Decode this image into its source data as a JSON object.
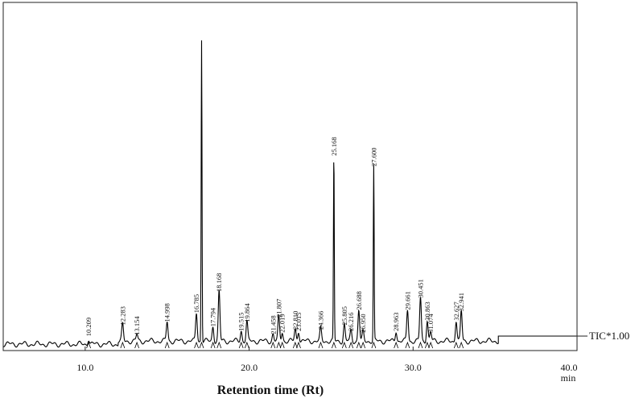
{
  "chart_data": {
    "type": "line",
    "xlabel": "Retention time (Rt)",
    "x_unit": "min",
    "xlim": [
      5.0,
      40.0
    ],
    "x_ticks": [
      "10.0",
      "20.0",
      "30.0",
      "40.0"
    ],
    "ylim": [
      0,
      100
    ],
    "grid": false,
    "trace_label": "TIC*1.00",
    "peaks": [
      {
        "rt": 10.209,
        "label": "10.209",
        "height": 1.8
      },
      {
        "rt": 12.283,
        "label": "12.283",
        "height": 5.5
      },
      {
        "rt": 13.154,
        "label": "13.154",
        "height": 2.2
      },
      {
        "rt": 14.998,
        "label": "14.998",
        "height": 6.5
      },
      {
        "rt": 16.785,
        "label": "16.785",
        "height": 9.5
      },
      {
        "rt": 17.1,
        "label": "",
        "height": 100.0
      },
      {
        "rt": 17.794,
        "label": "17.794",
        "height": 5.0
      },
      {
        "rt": 18.168,
        "label": "18.168",
        "height": 16.5
      },
      {
        "rt": 19.515,
        "label": "19.515",
        "height": 3.5
      },
      {
        "rt": 19.864,
        "label": "19.864",
        "height": 6.5
      },
      {
        "rt": 21.458,
        "label": "21.458",
        "height": 2.5
      },
      {
        "rt": 21.807,
        "label": "21.807",
        "height": 8.0
      },
      {
        "rt": 22.019,
        "label": "22.019",
        "height": 3.0
      },
      {
        "rt": 22.81,
        "label": "22.810",
        "height": 4.0
      },
      {
        "rt": 23.015,
        "label": "23.015",
        "height": 3.5
      },
      {
        "rt": 24.366,
        "label": "24.366",
        "height": 4.0
      },
      {
        "rt": 25.168,
        "label": "25.168",
        "height": 61.5
      },
      {
        "rt": 25.805,
        "label": "25.805",
        "height": 5.5
      },
      {
        "rt": 26.216,
        "label": "26.216",
        "height": 3.5
      },
      {
        "rt": 26.688,
        "label": "26.688",
        "height": 10.5
      },
      {
        "rt": 26.95,
        "label": "26.950",
        "height": 3.0
      },
      {
        "rt": 27.6,
        "label": "27.600",
        "height": 58.0
      },
      {
        "rt": 28.963,
        "label": "28.963",
        "height": 3.5
      },
      {
        "rt": 29.661,
        "label": "29.661",
        "height": 10.5
      },
      {
        "rt": 30.451,
        "label": "30.451",
        "height": 14.5
      },
      {
        "rt": 30.863,
        "label": "30.863",
        "height": 7.0
      },
      {
        "rt": 31.074,
        "label": "31.074",
        "height": 3.0
      },
      {
        "rt": 32.627,
        "label": "32.627",
        "height": 7.0
      },
      {
        "rt": 32.941,
        "label": "32.941",
        "height": 10.0
      }
    ]
  }
}
